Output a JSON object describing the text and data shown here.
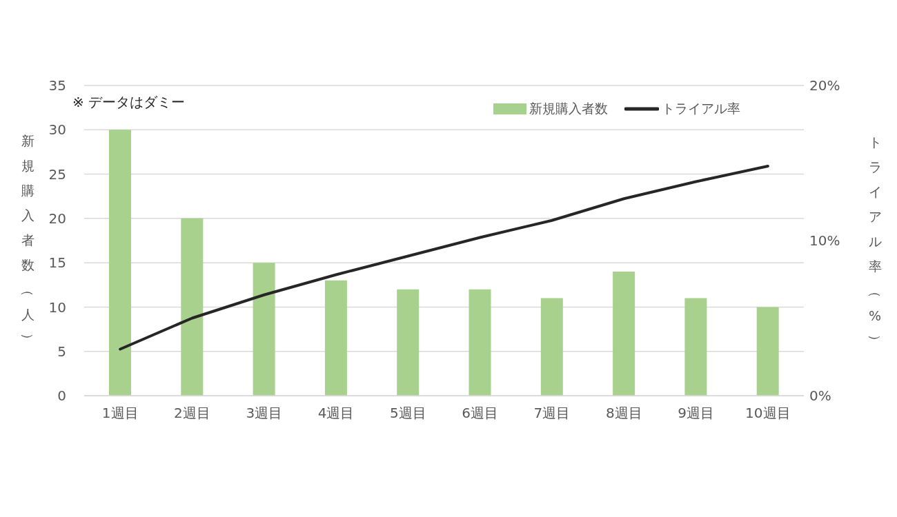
{
  "chart_data": {
    "type": "bar",
    "ylabel": "新規購入者数（人）",
    "y2label": "トライアル率（%）",
    "annotations": [
      "※ データはダミー"
    ],
    "categories": [
      "1週目",
      "2週目",
      "3週目",
      "4週目",
      "5週目",
      "6週目",
      "7週目",
      "8週目",
      "9週目",
      "10週目"
    ],
    "series": [
      {
        "name": "新規購入者数",
        "color": "#a9d18e",
        "values": [
          30,
          20,
          15,
          13,
          12,
          12,
          11,
          14,
          11,
          10
        ]
      },
      {
        "name": "トライアル率",
        "type": "line",
        "axis": "y2",
        "color": "#262626",
        "values": [
          3,
          5,
          6.5,
          7.8,
          9,
          10.2,
          11.3,
          12.7,
          13.8,
          14.8
        ]
      }
    ],
    "ylim": [
      0,
      35
    ],
    "yticks": [
      0,
      5,
      10,
      15,
      20,
      25,
      30,
      35
    ],
    "y2lim": [
      0,
      20
    ],
    "y2ticks": [
      {
        "value": 0,
        "label": "0%"
      },
      {
        "value": 10,
        "label": "10%"
      },
      {
        "value": 20,
        "label": "20%"
      }
    ],
    "grid": "y",
    "legend": "top right",
    "marker": "none",
    "line_style": "solid"
  }
}
